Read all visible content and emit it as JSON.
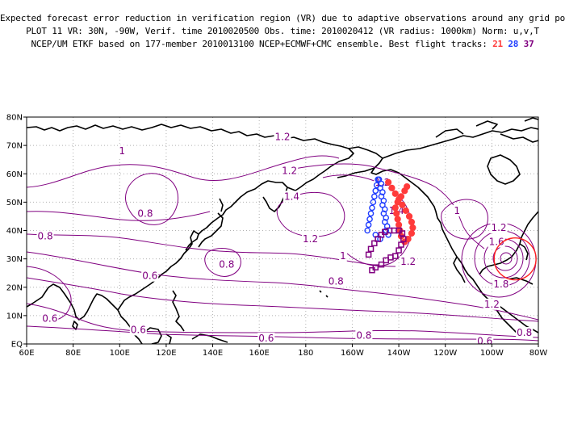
{
  "title": {
    "line1": "Expected forecast error reduction in verification region (VR) due to adaptive observations around any grid point.",
    "line2": "PLOT 11 VR: 30N, -90W, Verif. time 2010020500 Obs. time: 2010020412 (VR radius: 1000km) Norm: u,v,T",
    "line3_prefix": "NCEP/UM ETKF based on 177-member 2010013100 NCEP+ECMWF+CMC ensemble. Best flight tracks: ",
    "flights": [
      {
        "id": "21",
        "color": "#ff3b3b"
      },
      {
        "id": "28",
        "color": "#1e3cff"
      },
      {
        "id": "37",
        "color": "#800080"
      }
    ]
  },
  "axes": {
    "x_ticks": [
      "60E",
      "80E",
      "100E",
      "120E",
      "140E",
      "160E",
      "180",
      "160W",
      "140W",
      "120W",
      "100W",
      "80W"
    ],
    "y_ticks": [
      "EQ",
      "10N",
      "20N",
      "30N",
      "40N",
      "50N",
      "60N",
      "70N",
      "80N"
    ]
  },
  "contour_labels": [
    {
      "text": "1.2",
      "lon": 170,
      "lat": 73
    },
    {
      "text": "1",
      "lon": 101,
      "lat": 68
    },
    {
      "text": "1.2",
      "lon": 173,
      "lat": 61
    },
    {
      "text": "1.4",
      "lon": 174,
      "lat": 52
    },
    {
      "text": "1.2",
      "lon": 213,
      "lat": 57
    },
    {
      "text": "1.4",
      "lon": 219,
      "lat": 47
    },
    {
      "text": "0.8",
      "lon": 111,
      "lat": 46
    },
    {
      "text": "0.8",
      "lon": 68,
      "lat": 38
    },
    {
      "text": "1.2",
      "lon": 182,
      "lat": 37
    },
    {
      "text": "1",
      "lon": 196,
      "lat": 31
    },
    {
      "text": "1.2",
      "lon": 224,
      "lat": 29
    },
    {
      "text": "0.8",
      "lon": 146,
      "lat": 28
    },
    {
      "text": "0.6",
      "lon": 113,
      "lat": 24
    },
    {
      "text": "0.8",
      "lon": 193,
      "lat": 22
    },
    {
      "text": "1",
      "lon": 245,
      "lat": 47
    },
    {
      "text": "1.2",
      "lon": 263,
      "lat": 41
    },
    {
      "text": "1.6",
      "lon": 262,
      "lat": 36
    },
    {
      "text": "1.8",
      "lon": 264,
      "lat": 21
    },
    {
      "text": "1.2",
      "lon": 260,
      "lat": 14
    },
    {
      "text": "0.6",
      "lon": 70,
      "lat": 9
    },
    {
      "text": "0.6",
      "lon": 108,
      "lat": 5
    },
    {
      "text": "0.6",
      "lon": 163,
      "lat": 2
    },
    {
      "text": "0.8",
      "lon": 205,
      "lat": 3
    },
    {
      "text": "0.8",
      "lon": 274,
      "lat": 4
    },
    {
      "text": "0.6",
      "lon": 257,
      "lat": 1
    }
  ],
  "colors": {
    "contour": "#800080",
    "coast": "#000000",
    "grid": "#b0b0b0",
    "verification_circle": "#ff2020"
  },
  "verification_region": {
    "lat": 30,
    "lon": -90,
    "radius_km": 1000
  },
  "flight_tracks": [
    {
      "id": "21",
      "color": "#ff3b3b",
      "marker": "filled-circle",
      "points": [
        [
          215.5,
          57
        ],
        [
          217,
          55
        ],
        [
          218.5,
          53
        ],
        [
          220,
          51
        ],
        [
          221.5,
          49
        ],
        [
          223,
          47
        ],
        [
          224.5,
          45
        ],
        [
          225.5,
          43
        ],
        [
          226,
          41
        ],
        [
          225.5,
          39
        ],
        [
          224,
          37
        ],
        [
          222.5,
          36
        ],
        [
          221,
          38
        ],
        [
          220.5,
          40
        ],
        [
          220,
          42
        ],
        [
          219.5,
          44
        ],
        [
          219,
          46
        ],
        [
          218.5,
          48
        ],
        [
          219.5,
          50
        ],
        [
          221,
          52
        ],
        [
          222.5,
          54
        ],
        [
          223.5,
          55.5
        ]
      ]
    },
    {
      "id": "28",
      "color": "#1e3cff",
      "marker": "open-circle",
      "points": [
        [
          211.5,
          58
        ],
        [
          212.5,
          56.5
        ],
        [
          212,
          55
        ],
        [
          213,
          53.5
        ],
        [
          212.5,
          52
        ],
        [
          213.5,
          50.5
        ],
        [
          213,
          49
        ],
        [
          214,
          47.5
        ],
        [
          213.5,
          46
        ],
        [
          214.5,
          44.5
        ],
        [
          214,
          43
        ],
        [
          215,
          41.5
        ],
        [
          214.5,
          40
        ],
        [
          215.5,
          38.5
        ],
        [
          211,
          58
        ],
        [
          210.5,
          56
        ],
        [
          210,
          54
        ],
        [
          209.5,
          52
        ],
        [
          209,
          50
        ],
        [
          208.5,
          48
        ],
        [
          208,
          46
        ],
        [
          207.5,
          44
        ],
        [
          207,
          42
        ],
        [
          206.5,
          40
        ],
        [
          210,
          38.5
        ],
        [
          212,
          37
        ]
      ]
    },
    {
      "id": "37",
      "color": "#800080",
      "marker": "open-square",
      "points": [
        [
          207,
          31.5
        ],
        [
          208,
          33.5
        ],
        [
          209.5,
          35.5
        ],
        [
          211,
          37
        ],
        [
          212.5,
          38.5
        ],
        [
          214,
          39.5
        ],
        [
          216,
          40
        ],
        [
          218,
          40
        ],
        [
          220,
          40
        ],
        [
          221.5,
          39
        ],
        [
          222,
          37
        ],
        [
          221,
          35
        ],
        [
          220,
          33
        ],
        [
          218.5,
          31
        ],
        [
          216.5,
          30.5
        ],
        [
          214.5,
          29.5
        ],
        [
          212.5,
          28
        ],
        [
          210,
          27
        ],
        [
          208.5,
          26
        ]
      ]
    }
  ]
}
